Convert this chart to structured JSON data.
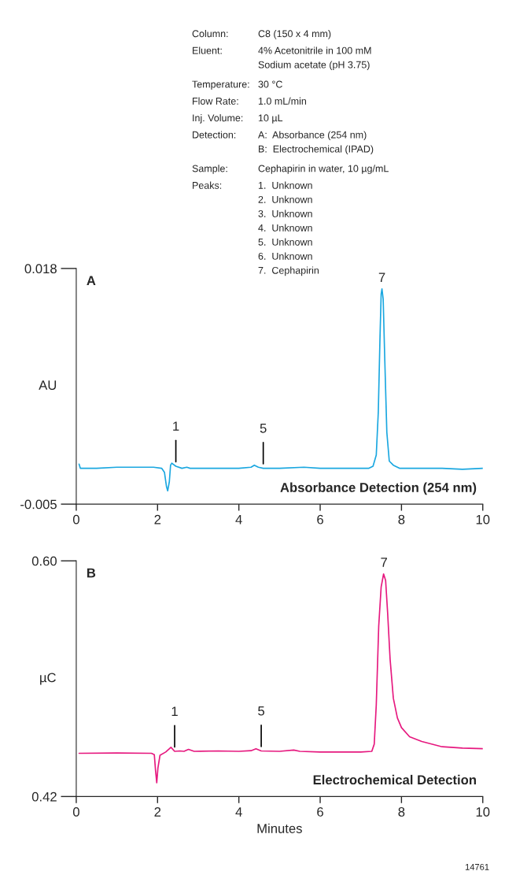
{
  "chart_data": [
    {
      "type": "line",
      "ylabel": "AU",
      "xlim": [
        0,
        10
      ],
      "xticks": [
        0,
        2,
        4,
        6,
        8,
        10
      ],
      "ylim": [
        -0.005,
        0.018
      ],
      "yticks": [
        {
          "value": -0.005,
          "label": "-0.005"
        },
        0.018
      ],
      "grid": false,
      "legend": false,
      "marker": "none",
      "line_style": "solid",
      "series": [
        {
          "color": "#1aa7e0",
          "x": [
            0.07,
            0.1,
            0.5,
            1.0,
            1.4,
            1.9,
            2.1,
            2.17,
            2.22,
            2.25,
            2.29,
            2.32,
            2.35,
            2.45,
            2.6,
            2.72,
            2.8,
            3.5,
            4.0,
            4.3,
            4.38,
            4.48,
            4.6,
            5.0,
            5.6,
            6.0,
            7.0,
            7.2,
            7.3,
            7.38,
            7.43,
            7.47,
            7.5,
            7.52,
            7.55,
            7.59,
            7.64,
            7.7,
            7.8,
            7.95,
            8.5,
            9.0,
            9.5,
            10.0
          ],
          "values": [
            -0.0011,
            -0.0015,
            -0.0015,
            -0.0014,
            -0.0014,
            -0.0014,
            -0.0015,
            -0.0019,
            -0.0033,
            -0.0037,
            -0.0028,
            -0.0012,
            -0.001,
            -0.0013,
            -0.0015,
            -0.0014,
            -0.0015,
            -0.0015,
            -0.0015,
            -0.0014,
            -0.0012,
            -0.0014,
            -0.0015,
            -0.0015,
            -0.0014,
            -0.0015,
            -0.0015,
            -0.0015,
            -0.0013,
            -0.0002,
            0.004,
            0.011,
            0.0155,
            0.016,
            0.015,
            0.009,
            0.002,
            -0.0008,
            -0.0012,
            -0.0015,
            -0.0015,
            -0.0015,
            -0.0016,
            -0.0015
          ]
        }
      ],
      "annotations": [
        "A",
        "Absorbance Detection (254 nm)",
        {
          "text": "1",
          "x": 2.45,
          "y": -0.0013
        },
        {
          "text": "5",
          "x": 4.6,
          "y": -0.0015
        },
        {
          "text": "7",
          "x": 7.52,
          "y": 0.016
        },
        "Column:",
        "C8 (150 x 4 mm)",
        "Eluent:",
        "4% Acetonitrile in 100 mM\nSodium acetate (pH 3.75)",
        "Temperature:",
        "30 °C",
        "Flow Rate:",
        "1.0 mL/min",
        "Inj. Volume:",
        "10 µL",
        "Detection:",
        "A:  Absorbance (254 nm)\nB:  Electrochemical (IPAD)",
        "Sample:",
        "Cephapirin in water, 10 µg/mL",
        "Peaks:",
        "1.  Unknown\n2.  Unknown\n3.  Unknown\n4.  Unknown\n5.  Unknown\n6.  Unknown\n7.  Cephapirin"
      ]
    },
    {
      "type": "line",
      "ylabel": "µC",
      "xlabel": "Minutes",
      "xlim": [
        0,
        10
      ],
      "xticks": [
        0,
        2,
        4,
        6,
        8,
        10
      ],
      "ylim": [
        0.42,
        0.6
      ],
      "yticks": [
        0.42,
        {
          "value": 0.6,
          "label": "0.60"
        }
      ],
      "grid": false,
      "legend": false,
      "marker": "none",
      "line_style": "solid",
      "series": [
        {
          "color": "#e6197f",
          "x": [
            0.07,
            1.0,
            1.85,
            1.92,
            1.95,
            1.98,
            2.01,
            2.06,
            2.2,
            2.33,
            2.42,
            2.55,
            2.65,
            2.76,
            2.9,
            3.5,
            4.0,
            4.3,
            4.42,
            4.55,
            5.0,
            5.35,
            5.5,
            6.0,
            7.0,
            7.27,
            7.33,
            7.38,
            7.44,
            7.5,
            7.56,
            7.61,
            7.66,
            7.72,
            7.8,
            7.9,
            8.0,
            8.2,
            8.5,
            9.0,
            9.5,
            10.0
          ],
          "values": [
            0.453,
            0.4532,
            0.453,
            0.452,
            0.44,
            0.4305,
            0.442,
            0.4515,
            0.454,
            0.4576,
            0.4545,
            0.4548,
            0.4545,
            0.456,
            0.4545,
            0.4548,
            0.4545,
            0.455,
            0.4565,
            0.4548,
            0.4545,
            0.4555,
            0.4545,
            0.454,
            0.454,
            0.4545,
            0.46,
            0.49,
            0.55,
            0.58,
            0.59,
            0.585,
            0.56,
            0.525,
            0.495,
            0.48,
            0.4726,
            0.4656,
            0.462,
            0.458,
            0.457,
            0.4565
          ]
        }
      ],
      "annotations": [
        "B",
        "Electrochemical Detection",
        {
          "text": "1",
          "x": 2.42,
          "y": 0.4545
        },
        {
          "text": "5",
          "x": 4.55,
          "y": 0.4548
        },
        {
          "text": "7",
          "x": 7.57,
          "y": 0.59
        },
        "14761"
      ]
    }
  ]
}
